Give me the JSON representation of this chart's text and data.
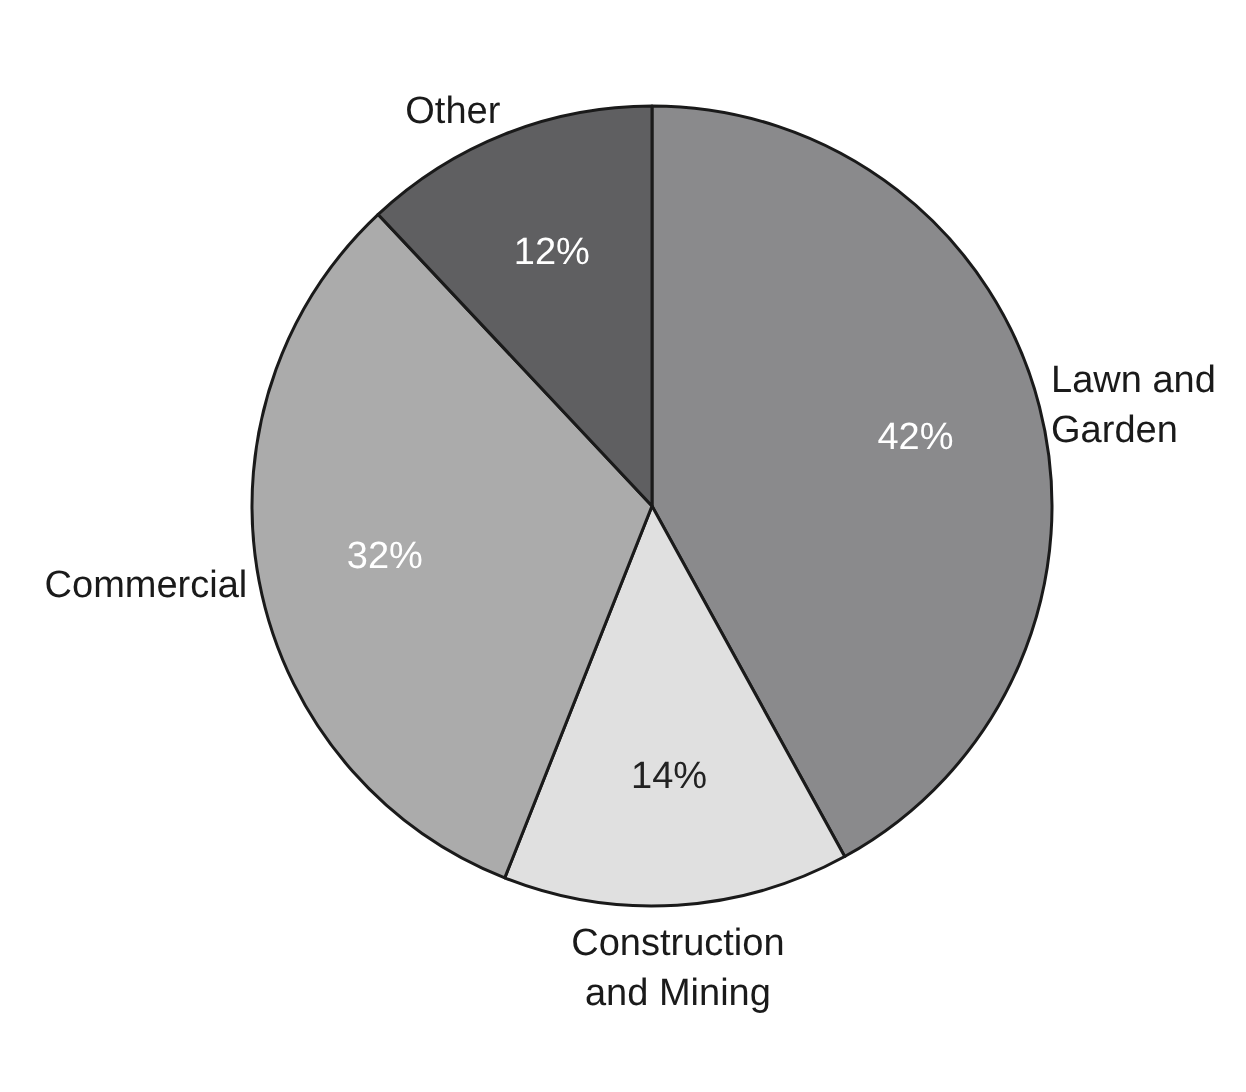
{
  "chart_data": {
    "type": "pie",
    "categories": [
      "Lawn and Garden",
      "Construction and Mining",
      "Commercial",
      "Other"
    ],
    "values": [
      42,
      14,
      32,
      12
    ],
    "value_labels": [
      "42%",
      "14%",
      "32%",
      "12%"
    ],
    "colors": [
      "#8a8a8c",
      "#e0e0e0",
      "#ababab",
      "#5f5f61"
    ]
  }
}
